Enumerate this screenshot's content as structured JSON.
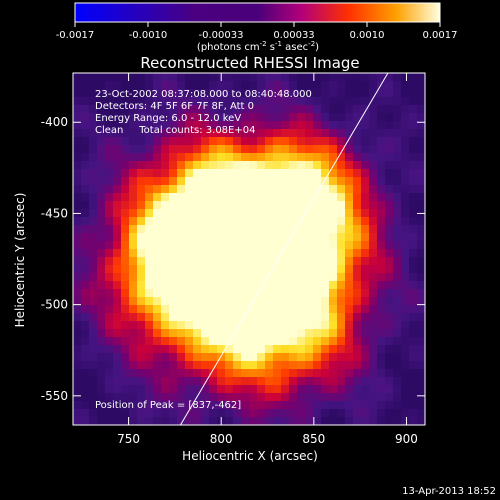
{
  "chart_data": {
    "type": "heatmap",
    "title": "Reconstructed RHESSI Image",
    "xlabel": "Heliocentric X (arcsec)",
    "ylabel": "Heliocentric Y (arcsec)",
    "xlim": [
      720,
      910
    ],
    "ylim": [
      -566,
      -373
    ],
    "x_ticks": [
      750,
      800,
      850,
      900
    ],
    "y_ticks": [
      -400,
      -450,
      -500,
      -550
    ],
    "colorbar": {
      "ticks": [
        "-0.0017",
        "-0.0010",
        "-0.00033",
        "0.00033",
        "0.0010",
        "0.0017"
      ],
      "range": [
        -0.0017,
        0.0017
      ],
      "unit_parts": [
        "(photons cm",
        "-2",
        " s",
        "-1",
        " asec",
        "-2",
        ")"
      ]
    },
    "annotations": [
      "23-Oct-2002 08:37:08.000 to 08:40:48.000",
      "Detectors: 4F 5F 6F 7F 8F, Att 0",
      "Energy Range: 6.0 - 12.0 keV",
      "Clean     Total counts: 3.08E+04",
      "Position of Peak = [837,-462]"
    ],
    "peak": [
      837,
      -462
    ],
    "limb_line": [
      [
        778,
        -566
      ],
      [
        890,
        -373
      ]
    ],
    "sources": [
      {
        "x": 800,
        "y": -478,
        "s": 40,
        "a": 1.0
      },
      {
        "x": 835,
        "y": -460,
        "s": 30,
        "a": 1.0
      },
      {
        "x": 775,
        "y": -480,
        "s": 22,
        "a": 0.5
      },
      {
        "x": 820,
        "y": -510,
        "s": 28,
        "a": 0.4
      },
      {
        "x": 790,
        "y": -440,
        "s": 25,
        "a": 0.35
      },
      {
        "x": 850,
        "y": -520,
        "s": 25,
        "a": 0.25
      },
      {
        "x": 850,
        "y": -430,
        "s": 20,
        "a": 0.25
      }
    ],
    "footer": "13-Apr-2013 18:52"
  }
}
